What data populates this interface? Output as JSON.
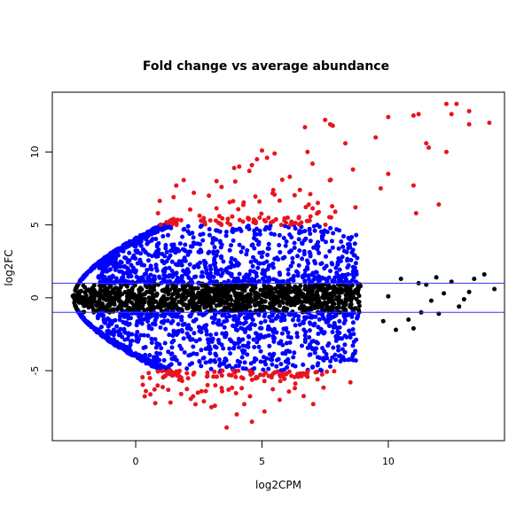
{
  "chart_data": {
    "type": "scatter",
    "title": "Fold change vs average abundance",
    "xlabel": "log2CPM",
    "ylabel": "log2FC",
    "xlim": [
      -3.3,
      14.6
    ],
    "ylim": [
      -9.8,
      14.1
    ],
    "x_ticks": [
      0,
      5,
      10
    ],
    "y_ticks": [
      -5,
      0,
      5,
      10
    ],
    "x_tick_labels": [
      "0",
      "5",
      "10"
    ],
    "y_tick_labels": [
      "-5",
      "0",
      "5",
      "10"
    ],
    "threshold_lines": {
      "y": [
        1,
        -1
      ],
      "color": "#3333ff"
    },
    "point_colors": {
      "not_significant": "#000000",
      "abs_log2FC_between_1_and_5": "#0000ff",
      "abs_log2FC_above_5": "#e8141e"
    },
    "grid": false,
    "legend": "none",
    "highlighted_points": [
      {
        "x": 12.7,
        "y": 13.3
      },
      {
        "x": 13.2,
        "y": 12.8
      },
      {
        "x": 12.5,
        "y": 12.6
      },
      {
        "x": 14.0,
        "y": 12.0
      },
      {
        "x": 13.2,
        "y": 11.9
      },
      {
        "x": 11.2,
        "y": 12.6
      },
      {
        "x": 11.0,
        "y": 12.5
      },
      {
        "x": 10.0,
        "y": 12.4
      },
      {
        "x": 7.5,
        "y": 12.2
      },
      {
        "x": 7.8,
        "y": 11.8
      },
      {
        "x": 6.7,
        "y": 11.7
      },
      {
        "x": 9.5,
        "y": 11.0
      },
      {
        "x": 11.5,
        "y": 10.6
      },
      {
        "x": 8.3,
        "y": 10.6
      },
      {
        "x": 11.6,
        "y": 10.3
      },
      {
        "x": 12.3,
        "y": 10.0
      },
      {
        "x": 5.0,
        "y": 10.1
      },
      {
        "x": 5.5,
        "y": 9.9
      },
      {
        "x": 4.8,
        "y": 9.5
      },
      {
        "x": 5.2,
        "y": 9.6
      },
      {
        "x": 4.6,
        "y": 9.1
      },
      {
        "x": 3.9,
        "y": 8.9
      },
      {
        "x": 4.1,
        "y": 9.0
      },
      {
        "x": 4.5,
        "y": 8.7
      },
      {
        "x": 7.0,
        "y": 9.2
      },
      {
        "x": 8.6,
        "y": 8.8
      },
      {
        "x": 10.0,
        "y": 8.5
      },
      {
        "x": 6.1,
        "y": 8.3
      },
      {
        "x": 5.8,
        "y": 8.1
      },
      {
        "x": 11.0,
        "y": 7.7
      },
      {
        "x": 9.7,
        "y": 7.5
      },
      {
        "x": 6.5,
        "y": 7.4
      },
      {
        "x": 3.2,
        "y": 8.0
      },
      {
        "x": 3.4,
        "y": 7.6
      },
      {
        "x": 2.3,
        "y": 7.2
      },
      {
        "x": 2.9,
        "y": 7.0
      },
      {
        "x": 1.5,
        "y": 6.9
      },
      {
        "x": 12.0,
        "y": 6.4
      },
      {
        "x": 11.1,
        "y": 5.8
      },
      {
        "x": 7.9,
        "y": 5.9
      },
      {
        "x": 8.7,
        "y": 6.2
      },
      {
        "x": 4.9,
        "y": 6.6
      },
      {
        "x": 12.3,
        "y": 13.3
      },
      {
        "x": 7.7,
        "y": 11.9
      },
      {
        "x": 6.8,
        "y": 10.0
      },
      {
        "x": 4.0,
        "y": -8.0
      },
      {
        "x": 4.6,
        "y": -8.5
      },
      {
        "x": 3.6,
        "y": -8.9
      },
      {
        "x": 3.0,
        "y": -7.5
      },
      {
        "x": 5.1,
        "y": -7.8
      },
      {
        "x": 8.5,
        "y": -5.8
      },
      {
        "x": 6.3,
        "y": -6.2
      },
      {
        "x": 5.7,
        "y": -7.0
      },
      {
        "x": 2.7,
        "y": -7.1
      },
      {
        "x": 1.8,
        "y": -6.6
      },
      {
        "x": 4.3,
        "y": -7.3
      },
      {
        "x": 7.2,
        "y": -5.6
      }
    ],
    "not_significant_outliers": [
      {
        "x": 12.5,
        "y": 1.1
      },
      {
        "x": 13.4,
        "y": 1.3
      },
      {
        "x": 13.8,
        "y": 1.6
      },
      {
        "x": 12.8,
        "y": -0.6
      },
      {
        "x": 13.2,
        "y": 0.4
      },
      {
        "x": 14.2,
        "y": 0.6
      },
      {
        "x": 11.5,
        "y": 0.9
      },
      {
        "x": 12.0,
        "y": -1.1
      },
      {
        "x": 11.9,
        "y": 1.4
      },
      {
        "x": 10.8,
        "y": -1.5
      },
      {
        "x": 11.0,
        "y": -2.1
      },
      {
        "x": 10.3,
        "y": -2.2
      },
      {
        "x": 11.3,
        "y": -1.0
      },
      {
        "x": 11.2,
        "y": 1.0
      },
      {
        "x": 12.2,
        "y": 0.3
      },
      {
        "x": 10.0,
        "y": 0.1
      },
      {
        "x": 11.7,
        "y": -0.2
      },
      {
        "x": 10.5,
        "y": 1.3
      },
      {
        "x": 13.0,
        "y": -0.1
      },
      {
        "x": 9.8,
        "y": -1.6
      }
    ]
  }
}
